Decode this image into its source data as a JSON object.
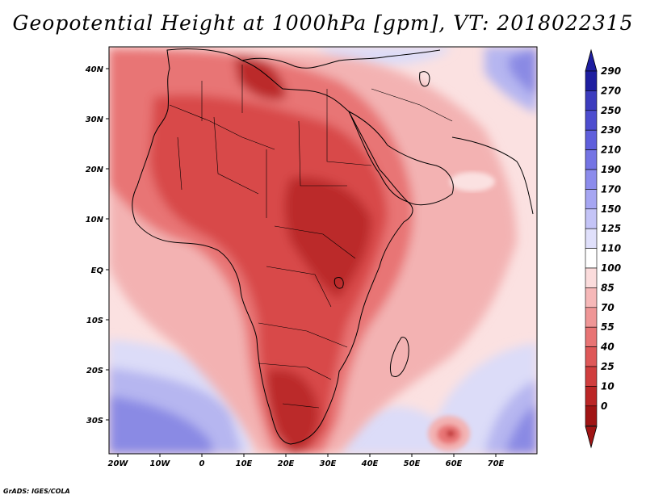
{
  "title": "Geopotential Height at 1000hPa [gpm], VT: 2018022315",
  "credit": "GrADS: IGES/COLA",
  "map": {
    "variable": "Geopotential Height",
    "level": "1000hPa",
    "units": "gpm",
    "valid_time": "2018022315",
    "lon_labels": [
      "20W",
      "10W",
      "0",
      "10E",
      "20E",
      "30E",
      "40E",
      "50E",
      "60E",
      "70E"
    ],
    "lat_labels": [
      "40N",
      "30N",
      "20N",
      "10N",
      "EQ",
      "10S",
      "20S",
      "30S"
    ]
  },
  "colorbar": {
    "levels": [
      "290",
      "270",
      "250",
      "230",
      "210",
      "190",
      "170",
      "150",
      "125",
      "110",
      "100",
      "85",
      "70",
      "55",
      "40",
      "25",
      "10",
      "0"
    ],
    "colors": [
      "#1e1ea0",
      "#3c3cbe",
      "#4d4dcf",
      "#5f5fdc",
      "#7474e4",
      "#8c8cec",
      "#a6a6f2",
      "#c4c4f7",
      "#e0e0fb",
      "#ffffff",
      "#fbdcdc",
      "#f6b8b8",
      "#ef9696",
      "#e87474",
      "#de5858",
      "#d03e3e",
      "#bb2626",
      "#a01414"
    ]
  },
  "field_colors": {
    "ocean": "#fbe1e1",
    "blue_light": "#dcdcf8",
    "blue_mid": "#b6b6f0",
    "blue_dark": "#8a8ae4",
    "pink": "#f3b2b2",
    "red1": "#e87474",
    "red2": "#d84a4a",
    "red3": "#bb2c2c"
  }
}
